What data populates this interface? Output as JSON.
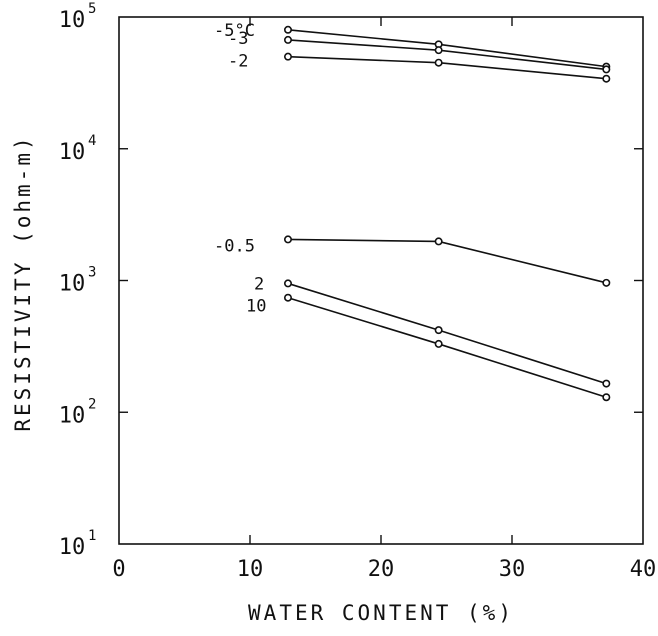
{
  "chart_data": {
    "type": "line",
    "xlabel": "WATER CONTENT (%)",
    "ylabel": "RESISTIVITY (ohm-m)",
    "xlim": [
      0,
      40
    ],
    "ylim": [
      10,
      100000
    ],
    "y_scale": "log",
    "x_ticks": [
      "0",
      "10",
      "20",
      "30",
      "40"
    ],
    "y_ticks": [
      {
        "value": 10,
        "base": "10",
        "exp": "1"
      },
      {
        "value": 100,
        "base": "10",
        "exp": "2"
      },
      {
        "value": 1000,
        "base": "10",
        "exp": "3"
      },
      {
        "value": 10000,
        "base": "10",
        "exp": "4"
      },
      {
        "value": 100000,
        "base": "10",
        "exp": "5"
      }
    ],
    "grid": false,
    "x": [
      12.9,
      24.4,
      37.2
    ],
    "series": [
      {
        "name": "-5°C",
        "values": [
          80000,
          62000,
          42000
        ]
      },
      {
        "name": "-3",
        "values": [
          67000,
          56000,
          40000
        ]
      },
      {
        "name": "-2",
        "values": [
          50000,
          45000,
          34000
        ]
      },
      {
        "name": "-0.5",
        "values": [
          2050,
          1980,
          960
        ]
      },
      {
        "name": "2",
        "values": [
          950,
          420,
          165
        ]
      },
      {
        "name": "10",
        "values": [
          740,
          330,
          130
        ]
      }
    ]
  }
}
